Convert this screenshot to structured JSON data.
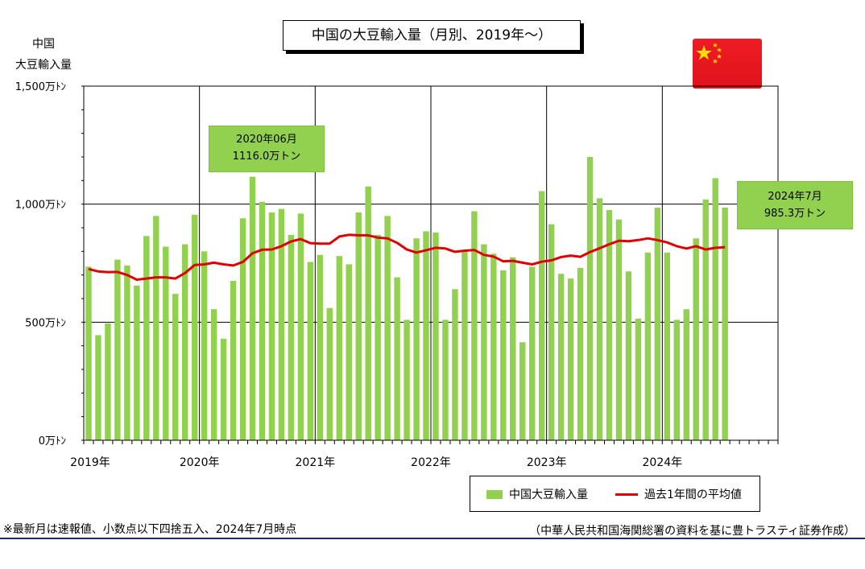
{
  "title": "中国の大豆輸入量（月別、2019年～）",
  "y_axis_title": "中国\n大豆輸入量",
  "chart_data": {
    "type": "bar",
    "title": "中国の大豆輸入量（月別、2019年～）",
    "ylabel": "中国 大豆輸入量",
    "ylim": [
      0,
      1500
    ],
    "y_ticks": [
      {
        "value": 0,
        "label": "0万ﾄﾝ"
      },
      {
        "value": 500,
        "label": "500万ﾄﾝ"
      },
      {
        "value": 1000,
        "label": "1,000万ﾄﾝ"
      },
      {
        "value": 1500,
        "label": "1,500万ﾄﾝ"
      }
    ],
    "x_year_labels": [
      "2019年",
      "2020年",
      "2021年",
      "2022年",
      "2023年",
      "2024年"
    ],
    "total_month_slots": 72,
    "grid": true,
    "legend_position": "bottom-right",
    "series": [
      {
        "name": "中国大豆輸入量",
        "type": "bar",
        "color": "#92D050",
        "values": [
          735,
          445,
          495,
          765,
          740,
          655,
          865,
          950,
          820,
          620,
          830,
          955,
          800,
          555,
          430,
          675,
          940,
          1116,
          1010,
          965,
          980,
          870,
          960,
          755,
          785,
          560,
          780,
          745,
          965,
          1075,
          870,
          950,
          690,
          510,
          855,
          885,
          880,
          510,
          640,
          800,
          970,
          830,
          790,
          720,
          775,
          415,
          735,
          1055,
          915,
          705,
          685,
          730,
          1200,
          1025,
          975,
          935,
          715,
          515,
          795,
          985,
          795,
          510,
          555,
          855,
          1020,
          1110,
          985.3
        ]
      },
      {
        "name": "過去1年間の平均値",
        "type": "line",
        "color": "#e00000",
        "values": [
          725,
          715,
          712,
          713,
          700,
          680,
          685,
          690,
          690,
          685,
          708,
          742,
          745,
          752,
          745,
          740,
          755,
          792,
          807,
          808,
          822,
          842,
          852,
          835,
          833,
          833,
          863,
          870,
          868,
          868,
          858,
          855,
          836,
          808,
          795,
          805,
          815,
          812,
          798,
          803,
          806,
          785,
          778,
          758,
          760,
          752,
          745,
          756,
          762,
          776,
          782,
          777,
          797,
          813,
          830,
          845,
          843,
          848,
          855,
          848,
          838,
          822,
          812,
          822,
          808,
          815,
          818
        ]
      }
    ],
    "annotations": [
      {
        "month_index": 17,
        "lines": [
          "2020年06月",
          "1116.0万トン"
        ]
      },
      {
        "month_index": 66,
        "lines": [
          "2024年7月",
          "985.3万トン"
        ]
      }
    ]
  },
  "legend": {
    "bar_label": "中国大豆輸入量",
    "line_label": "過去1年間の平均値"
  },
  "callouts": {
    "peak": {
      "line1": "2020年06月",
      "line2": "1116.0万トン"
    },
    "latest": {
      "line1": "2024年7月",
      "line2": "985.3万トン"
    }
  },
  "footnote": "※最新月は速報値、小数点以下四捨五入、2024年7月時点",
  "source": "（中華人民共和国海関総署の資料を基に豊トラスティ証券作成）",
  "flag_icon": "china-flag-icon",
  "colors": {
    "bar": "#92D050",
    "line": "#e00000",
    "flag_red": "#ee1c25",
    "flag_star": "#ffde00",
    "rule": "#1a2f5a"
  }
}
